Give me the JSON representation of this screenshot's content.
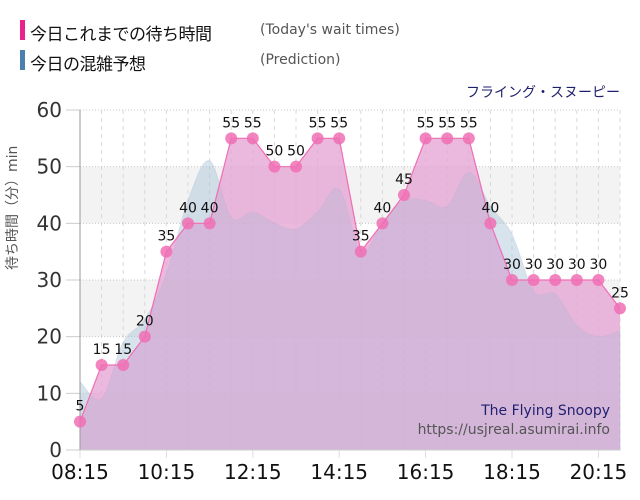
{
  "legend": {
    "actual": {
      "label_jp": "今日これまでの待ち時間",
      "label_en": "(Today's wait times)",
      "color": "#e8248c"
    },
    "prediction": {
      "label_jp": "今日の混雑予想",
      "label_en": "(Prediction)",
      "color": "#4a7fb0"
    }
  },
  "ride_name": "フライング・スヌーピー",
  "watermark": {
    "title": "The Flying Snoopy",
    "url": "https://usjreal.asumirai.info"
  },
  "chart_data": {
    "type": "area",
    "title": "フライング・スヌーピー",
    "xlabel": "",
    "ylabel": "待ち時間（分）min",
    "ylim": [
      0,
      60
    ],
    "yticks": [
      0,
      10,
      20,
      30,
      40,
      50,
      60
    ],
    "xticks": [
      "08:15",
      "10:15",
      "12:15",
      "14:15",
      "16:15",
      "18:15",
      "20:15"
    ],
    "grid": true,
    "x": [
      "08:15",
      "08:45",
      "09:15",
      "09:45",
      "10:15",
      "10:45",
      "11:15",
      "11:45",
      "12:15",
      "12:45",
      "13:15",
      "13:45",
      "14:15",
      "14:45",
      "15:15",
      "15:45",
      "16:15",
      "16:45",
      "17:15",
      "17:45",
      "18:15",
      "18:45",
      "19:15",
      "19:45",
      "20:15",
      "20:45"
    ],
    "series": [
      {
        "name": "今日これまでの待ち時間 (Today's wait times)",
        "values": [
          5,
          15,
          15,
          20,
          35,
          40,
          40,
          55,
          55,
          50,
          50,
          55,
          55,
          35,
          40,
          45,
          55,
          55,
          55,
          40,
          30,
          30,
          30,
          30,
          30,
          25
        ],
        "color": "#f06eb4"
      },
      {
        "name": "今日の混雑予想 (Prediction)",
        "values": [
          12,
          9,
          19,
          23,
          31,
          44,
          51,
          41,
          42,
          40,
          39,
          42,
          46,
          35,
          40,
          44,
          44,
          43,
          49,
          43,
          38,
          28,
          27.5,
          22,
          20,
          21
        ],
        "color": "#a8c4d8"
      }
    ]
  },
  "y_tick_labels": [
    "60",
    "50",
    "40",
    "30",
    "20",
    "10",
    "0"
  ],
  "x_tick_labels": [
    "08:15",
    "10:15",
    "12:15",
    "14:15",
    "16:15",
    "18:15",
    "20:15"
  ]
}
